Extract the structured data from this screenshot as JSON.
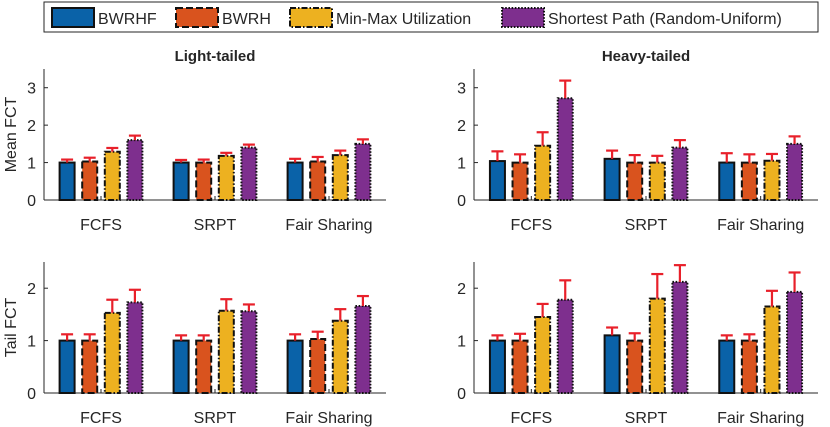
{
  "legend": [
    {
      "label": "BWRHF",
      "color": "#0a62a8",
      "border": "solid"
    },
    {
      "label": "BWRH",
      "color": "#d9531e",
      "border": "dashed"
    },
    {
      "label": "Min-Max Utilization",
      "color": "#edb120",
      "border": "dashdot"
    },
    {
      "label": "Shortest Path (Random-Uniform)",
      "color": "#7e2f8e",
      "border": "dotted"
    }
  ],
  "errorbar_color": "#e8202a",
  "chart_data": [
    {
      "type": "bar",
      "title": "Light-tailed",
      "ylabel": "Mean FCT",
      "xlabel": "",
      "categories": [
        "FCFS",
        "SRPT",
        "Fair Sharing"
      ],
      "ylim": [
        0,
        3.5
      ],
      "yticks": [
        "0",
        "1",
        "2",
        "3"
      ],
      "series": [
        {
          "name": "BWRHF",
          "values": [
            1.0,
            1.0,
            1.0
          ],
          "err": [
            0.08,
            0.07,
            0.1
          ]
        },
        {
          "name": "BWRH",
          "values": [
            1.03,
            1.0,
            1.03
          ],
          "err": [
            0.1,
            0.08,
            0.12
          ]
        },
        {
          "name": "Min-Max Utilization",
          "values": [
            1.29,
            1.18,
            1.2
          ],
          "err": [
            0.1,
            0.08,
            0.12
          ]
        },
        {
          "name": "Shortest Path (Random-Uniform)",
          "values": [
            1.6,
            1.4,
            1.5
          ],
          "err": [
            0.12,
            0.08,
            0.12
          ]
        }
      ]
    },
    {
      "type": "bar",
      "title": "Heavy-tailed",
      "ylabel": "",
      "xlabel": "",
      "categories": [
        "FCFS",
        "SRPT",
        "Fair Sharing"
      ],
      "ylim": [
        0,
        3.5
      ],
      "yticks": [
        "0",
        "1",
        "2",
        "3"
      ],
      "series": [
        {
          "name": "BWRHF",
          "values": [
            1.04,
            1.1,
            1.0
          ],
          "err": [
            0.26,
            0.22,
            0.25
          ]
        },
        {
          "name": "BWRH",
          "values": [
            1.0,
            1.0,
            1.0
          ],
          "err": [
            0.22,
            0.2,
            0.22
          ]
        },
        {
          "name": "Min-Max Utilization",
          "values": [
            1.45,
            1.0,
            1.05
          ],
          "err": [
            0.36,
            0.18,
            0.18
          ]
        },
        {
          "name": "Shortest Path (Random-Uniform)",
          "values": [
            2.72,
            1.4,
            1.5
          ],
          "err": [
            0.47,
            0.2,
            0.2
          ]
        }
      ]
    },
    {
      "type": "bar",
      "title": "",
      "ylabel": "Tail FCT",
      "xlabel": "",
      "categories": [
        "FCFS",
        "SRPT",
        "Fair Sharing"
      ],
      "ylim": [
        0,
        2.5
      ],
      "yticks": [
        "0",
        "1",
        "2"
      ],
      "series": [
        {
          "name": "BWRHF",
          "values": [
            1.0,
            1.0,
            1.0
          ],
          "err": [
            0.12,
            0.1,
            0.12
          ]
        },
        {
          "name": "BWRH",
          "values": [
            1.0,
            1.0,
            1.03
          ],
          "err": [
            0.12,
            0.1,
            0.14
          ]
        },
        {
          "name": "Min-Max Utilization",
          "values": [
            1.53,
            1.57,
            1.38
          ],
          "err": [
            0.25,
            0.22,
            0.22
          ]
        },
        {
          "name": "Shortest Path (Random-Uniform)",
          "values": [
            1.73,
            1.56,
            1.66
          ],
          "err": [
            0.24,
            0.13,
            0.19
          ]
        }
      ]
    },
    {
      "type": "bar",
      "title": "",
      "ylabel": "",
      "xlabel": "",
      "categories": [
        "FCFS",
        "SRPT",
        "Fair Sharing"
      ],
      "ylim": [
        0,
        2.5
      ],
      "yticks": [
        "0",
        "1",
        "2"
      ],
      "series": [
        {
          "name": "BWRHF",
          "values": [
            1.0,
            1.1,
            1.0
          ],
          "err": [
            0.1,
            0.15,
            0.1
          ]
        },
        {
          "name": "BWRH",
          "values": [
            1.0,
            1.0,
            1.0
          ],
          "err": [
            0.13,
            0.14,
            0.12
          ]
        },
        {
          "name": "Min-Max Utilization",
          "values": [
            1.45,
            1.8,
            1.65
          ],
          "err": [
            0.25,
            0.47,
            0.3
          ]
        },
        {
          "name": "Shortest Path (Random-Uniform)",
          "values": [
            1.78,
            2.12,
            1.93
          ],
          "err": [
            0.37,
            0.32,
            0.37
          ]
        }
      ]
    }
  ]
}
